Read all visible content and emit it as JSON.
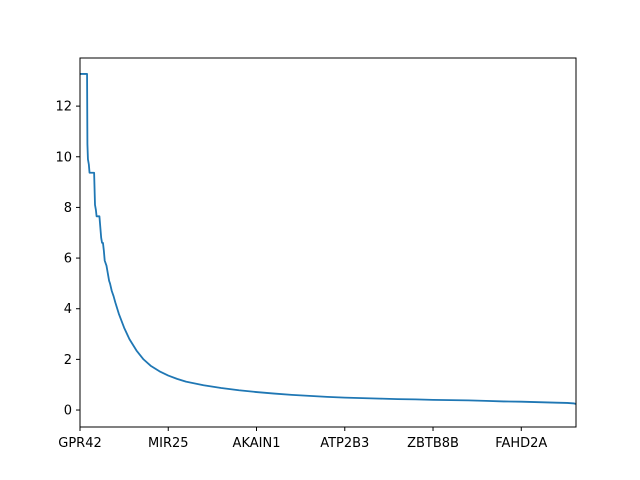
{
  "chart_data": {
    "type": "line",
    "title": "",
    "xlabel": "",
    "ylabel": "",
    "grid": false,
    "legend": "none",
    "line_color": "#1f77b4",
    "x_tick_labels": [
      "GPR42",
      "MIR25",
      "AKAIN1",
      "ATP2B3",
      "ZBTB8B",
      "FAHD2A"
    ],
    "x_ticks": [
      0,
      50,
      100,
      150,
      200,
      250
    ],
    "xlim": [
      0,
      281
    ],
    "y_ticks": [
      0,
      2,
      4,
      6,
      8,
      10,
      12
    ],
    "y_tick_labels": [
      "0",
      "2",
      "4",
      "6",
      "8",
      "10",
      "12"
    ],
    "ylim": [
      -0.67,
      13.9
    ],
    "series": [
      {
        "x": [
          0,
          1,
          2,
          3,
          4,
          4.2,
          4.5,
          5,
          5.4,
          5.6,
          6,
          7,
          8,
          8.5,
          9,
          9.4,
          10,
          11,
          12,
          12.5,
          13,
          13.5,
          14,
          15,
          15.5,
          16,
          16.5,
          17,
          18,
          19,
          20,
          22,
          25,
          28,
          32,
          36,
          40,
          45,
          50,
          55,
          60,
          70,
          80,
          90,
          100,
          110,
          120,
          130,
          140,
          150,
          160,
          170,
          180,
          190,
          200,
          210,
          220,
          230,
          240,
          250,
          260,
          270,
          276,
          278,
          280,
          281
        ],
        "y": [
          13.27,
          13.27,
          13.27,
          13.27,
          13.27,
          10.5,
          9.9,
          9.7,
          9.37,
          9.37,
          9.37,
          9.37,
          9.37,
          8.1,
          7.9,
          7.65,
          7.65,
          7.65,
          6.8,
          6.6,
          6.6,
          6.3,
          5.9,
          5.7,
          5.5,
          5.3,
          5.1,
          5.0,
          4.7,
          4.5,
          4.25,
          3.8,
          3.25,
          2.8,
          2.35,
          2.0,
          1.75,
          1.53,
          1.36,
          1.23,
          1.12,
          0.98,
          0.87,
          0.78,
          0.71,
          0.65,
          0.6,
          0.56,
          0.52,
          0.49,
          0.47,
          0.45,
          0.43,
          0.42,
          0.4,
          0.39,
          0.38,
          0.36,
          0.34,
          0.33,
          0.31,
          0.29,
          0.28,
          0.27,
          0.26,
          0.24
        ]
      }
    ]
  }
}
